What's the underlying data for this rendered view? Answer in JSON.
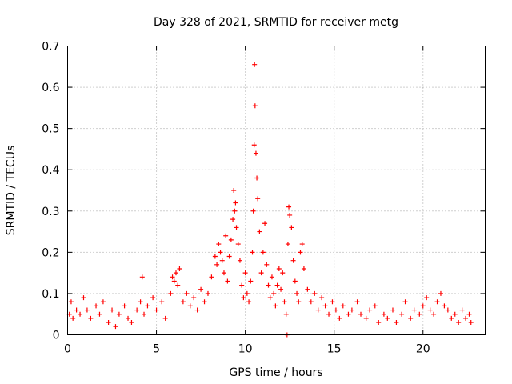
{
  "chart_data": {
    "type": "scatter",
    "title": "Day 328 of 2021, SRMTID for receiver metg",
    "xlabel": "GPS time / hours",
    "ylabel": "SRMTID / TECUs",
    "xlim": [
      0,
      23.5
    ],
    "ylim": [
      0,
      0.7
    ],
    "xticks": [
      0,
      5,
      10,
      15,
      20
    ],
    "xtick_labels": [
      "0",
      "5",
      "10",
      "15",
      "20"
    ],
    "yticks": [
      0,
      0.1,
      0.2,
      0.3,
      0.4,
      0.5,
      0.6,
      0.7
    ],
    "ytick_labels": [
      "0",
      "0.1",
      "0.2",
      "0.3",
      "0.4",
      "0.5",
      "0.6",
      "0.7"
    ],
    "grid": true,
    "marker": "plus",
    "color": "#ff0000",
    "series": [
      {
        "name": "SRMTID",
        "x": [
          0.1,
          0.2,
          0.3,
          0.5,
          0.7,
          0.9,
          1.1,
          1.3,
          1.6,
          1.8,
          2.0,
          2.3,
          2.5,
          2.7,
          2.9,
          3.2,
          3.4,
          3.6,
          3.9,
          4.1,
          4.2,
          4.3,
          4.5,
          4.8,
          5.0,
          5.3,
          5.5,
          5.8,
          5.9,
          6.0,
          6.1,
          6.2,
          6.3,
          6.5,
          6.7,
          6.9,
          7.1,
          7.3,
          7.5,
          7.7,
          7.9,
          8.1,
          8.3,
          8.4,
          8.5,
          8.6,
          8.7,
          8.8,
          8.9,
          9.0,
          9.1,
          9.2,
          9.3,
          9.35,
          9.4,
          9.45,
          9.5,
          9.6,
          9.7,
          9.8,
          9.9,
          10.0,
          10.1,
          10.2,
          10.3,
          10.4,
          10.45,
          10.5,
          10.52,
          10.55,
          10.6,
          10.65,
          10.7,
          10.8,
          10.9,
          11.0,
          11.1,
          11.2,
          11.3,
          11.4,
          11.5,
          11.6,
          11.7,
          11.8,
          11.9,
          12.0,
          12.1,
          12.2,
          12.3,
          12.35,
          12.4,
          12.45,
          12.5,
          12.6,
          12.7,
          12.8,
          12.9,
          13.0,
          13.1,
          13.2,
          13.3,
          13.5,
          13.7,
          13.9,
          14.1,
          14.3,
          14.5,
          14.7,
          14.9,
          15.1,
          15.3,
          15.5,
          15.8,
          16.0,
          16.3,
          16.5,
          16.8,
          17.0,
          17.3,
          17.5,
          17.8,
          18.0,
          18.3,
          18.5,
          18.8,
          19.0,
          19.3,
          19.5,
          19.8,
          20.0,
          20.2,
          20.4,
          20.6,
          20.8,
          21.0,
          21.2,
          21.4,
          21.6,
          21.8,
          22.0,
          22.2,
          22.4,
          22.6,
          22.7
        ],
        "values": [
          0.05,
          0.08,
          0.04,
          0.06,
          0.05,
          0.09,
          0.06,
          0.04,
          0.07,
          0.05,
          0.08,
          0.03,
          0.06,
          0.02,
          0.05,
          0.07,
          0.04,
          0.03,
          0.06,
          0.08,
          0.14,
          0.05,
          0.07,
          0.09,
          0.06,
          0.08,
          0.04,
          0.1,
          0.14,
          0.13,
          0.15,
          0.12,
          0.16,
          0.08,
          0.1,
          0.07,
          0.09,
          0.06,
          0.11,
          0.08,
          0.1,
          0.14,
          0.19,
          0.17,
          0.22,
          0.2,
          0.18,
          0.15,
          0.24,
          0.13,
          0.19,
          0.23,
          0.28,
          0.35,
          0.3,
          0.32,
          0.26,
          0.22,
          0.18,
          0.12,
          0.09,
          0.15,
          0.1,
          0.08,
          0.13,
          0.2,
          0.3,
          0.46,
          0.655,
          0.555,
          0.44,
          0.38,
          0.33,
          0.25,
          0.15,
          0.2,
          0.27,
          0.17,
          0.12,
          0.09,
          0.14,
          0.1,
          0.07,
          0.12,
          0.16,
          0.11,
          0.15,
          0.08,
          0.05,
          0.0,
          0.22,
          0.31,
          0.29,
          0.26,
          0.18,
          0.13,
          0.1,
          0.08,
          0.2,
          0.22,
          0.16,
          0.11,
          0.08,
          0.1,
          0.06,
          0.09,
          0.07,
          0.05,
          0.08,
          0.06,
          0.04,
          0.07,
          0.05,
          0.06,
          0.08,
          0.05,
          0.04,
          0.06,
          0.07,
          0.03,
          0.05,
          0.04,
          0.06,
          0.03,
          0.05,
          0.08,
          0.04,
          0.06,
          0.05,
          0.07,
          0.09,
          0.06,
          0.05,
          0.08,
          0.1,
          0.07,
          0.06,
          0.04,
          0.05,
          0.03,
          0.06,
          0.04,
          0.05,
          0.03
        ]
      }
    ]
  }
}
